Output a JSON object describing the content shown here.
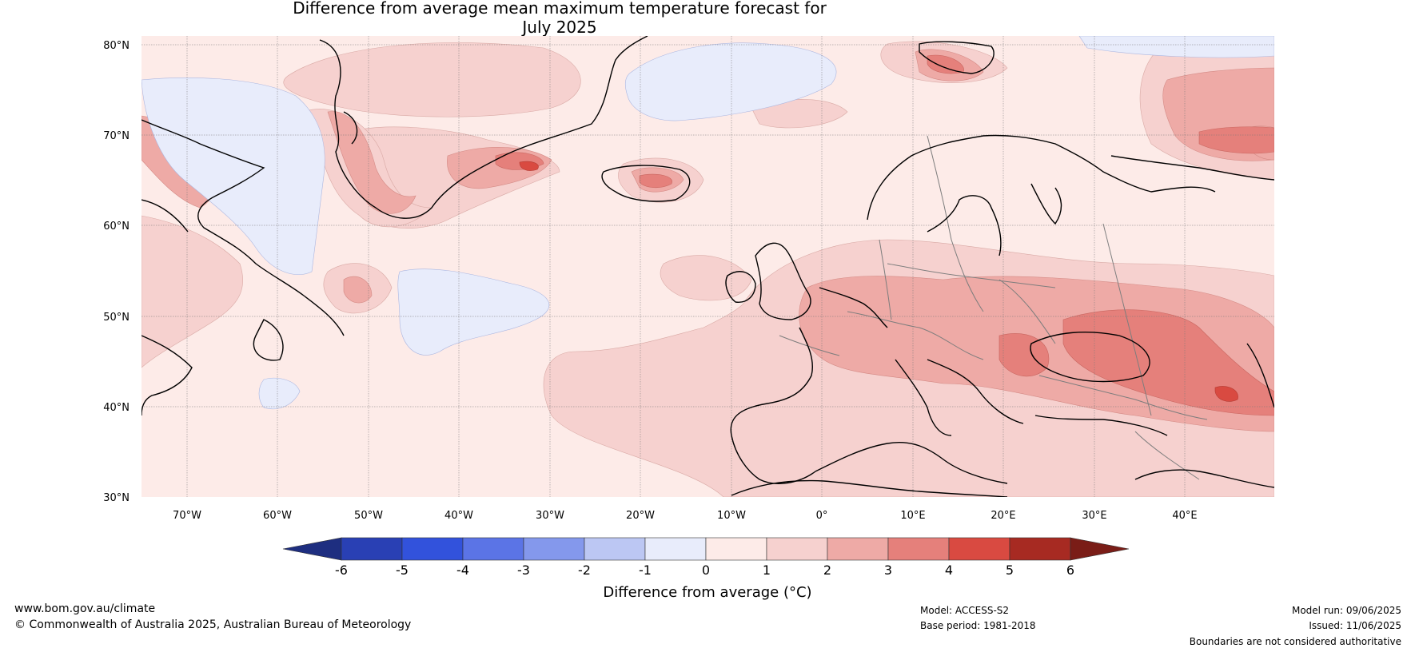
{
  "title": "Difference from average mean maximum temperature forecast for\nJuly 2025",
  "map": {
    "lat_ticks": [
      "80°N",
      "70°N",
      "60°N",
      "50°N",
      "40°N",
      "30°N"
    ],
    "lon_ticks": [
      "70°W",
      "60°W",
      "50°W",
      "40°W",
      "30°W",
      "20°W",
      "10°W",
      "0°",
      "10°E",
      "20°E",
      "30°E",
      "40°E"
    ],
    "extent": {
      "lon": [
        -75,
        50
      ],
      "lat": [
        30,
        81
      ]
    }
  },
  "colorbar": {
    "tick_labels": [
      "-6",
      "-5",
      "-4",
      "-3",
      "-2",
      "-1",
      "0",
      "1",
      "2",
      "3",
      "4",
      "5",
      "6"
    ],
    "colors": [
      "#1e2e80",
      "#2940b4",
      "#3252dc",
      "#5b74e6",
      "#8498ec",
      "#bcc7f3",
      "#e8ecfb",
      "#fdebe8",
      "#f6d1cf",
      "#eeaaa6",
      "#e5807b",
      "#d94a41",
      "#a72a22",
      "#7a1d17"
    ],
    "label": "Difference from average (°C)"
  },
  "footer": {
    "website": "www.bom.gov.au/climate",
    "copyright": "© Commonwealth of Australia 2025, Australian Bureau of Meteorology",
    "model": "Model: ACCESS-S2",
    "base_period": "Base period: 1981-2018",
    "model_run": "Model run: 09/06/2025",
    "issued": "Issued: 11/06/2025",
    "disclaimer": "Boundaries are not considered authoritative"
  }
}
